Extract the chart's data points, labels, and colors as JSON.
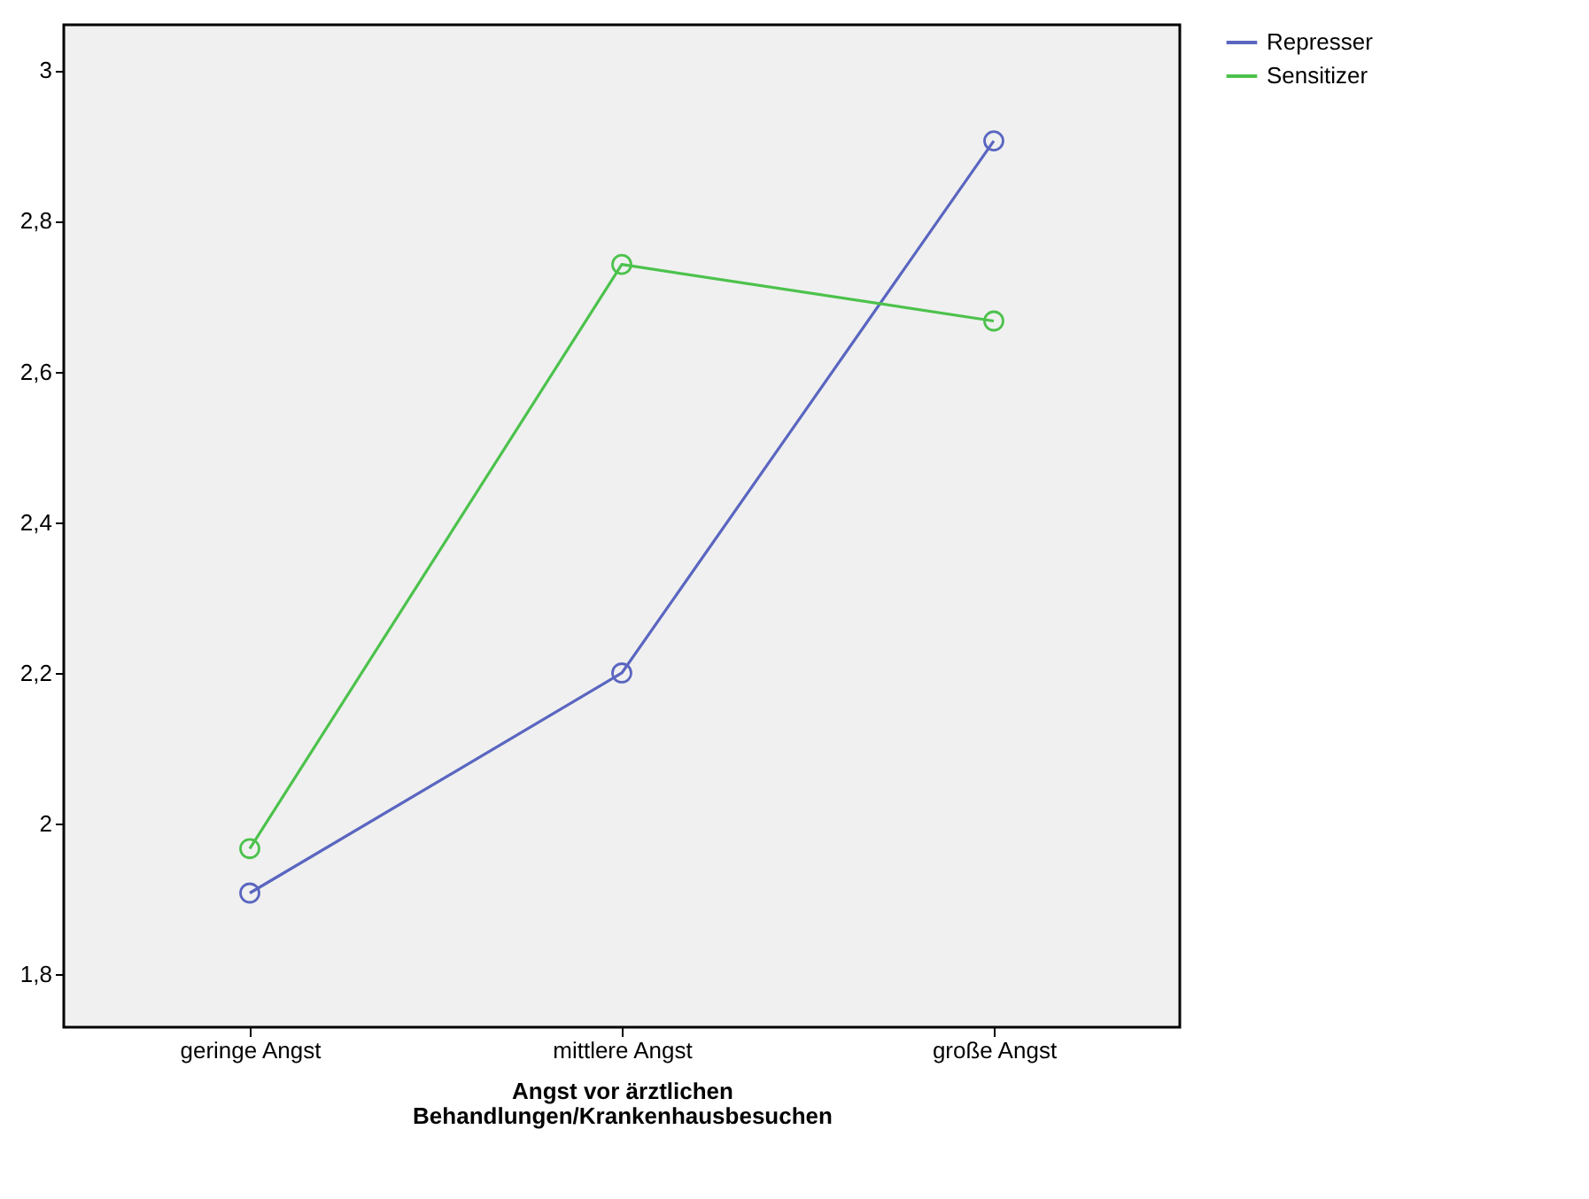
{
  "chart_data": {
    "type": "line",
    "xlabel": "Angst vor ärztlichen\nBehandlungen/Krankenhausbesuchen",
    "categories": [
      "geringe Angst",
      "mittlere Angst",
      "große Angst"
    ],
    "series": [
      {
        "name": "Represser",
        "color": "#5a66c0",
        "values": [
          1.908,
          2.2,
          2.906
        ]
      },
      {
        "name": "Sensitizer",
        "color": "#4cc24c",
        "values": [
          1.967,
          2.742,
          2.667
        ]
      }
    ],
    "ylim": [
      1.73,
      3.06
    ],
    "yticks": [
      {
        "value": 1.8,
        "label": "1,8"
      },
      {
        "value": 2,
        "label": "2"
      },
      {
        "value": 2.2,
        "label": "2,2"
      },
      {
        "value": 2.4,
        "label": "2,4"
      },
      {
        "value": 2.6,
        "label": "2,6"
      },
      {
        "value": 2.8,
        "label": "2,8"
      },
      {
        "value": 3,
        "label": "3"
      }
    ],
    "grid": false,
    "legend": "right",
    "marker": "circle",
    "line_style": "solid"
  }
}
